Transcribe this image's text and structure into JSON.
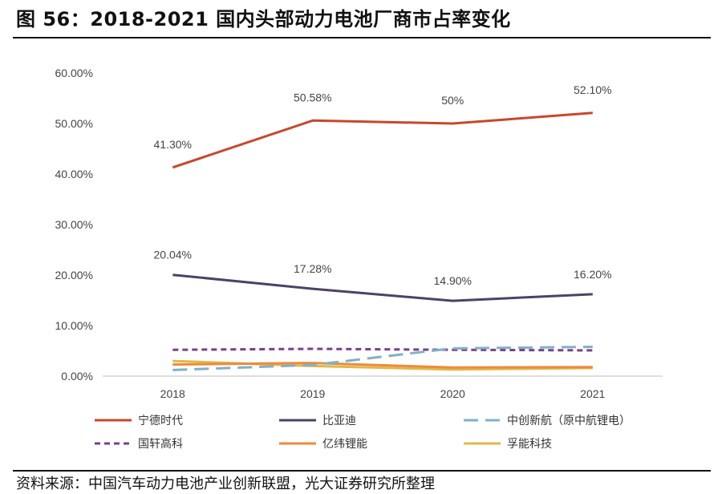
{
  "figure": {
    "title": "图 56：2018-2021 国内头部动力电池厂商市占率变化",
    "source": "资料来源：中国汽车动力电池产业创新联盟，光大证券研究所整理"
  },
  "chart_data": {
    "type": "line",
    "categories": [
      "2018",
      "2019",
      "2020",
      "2021"
    ],
    "ylim": [
      0,
      60
    ],
    "yticks": [
      "0.00%",
      "10.00%",
      "20.00%",
      "30.00%",
      "40.00%",
      "50.00%",
      "60.00%"
    ],
    "grid": false,
    "legend_position": "bottom",
    "series": [
      {
        "name": "宁德时代",
        "values": [
          41.3,
          50.58,
          50.0,
          52.1
        ],
        "labels": [
          "41.30%",
          "50.58%",
          "50%",
          "52.10%"
        ],
        "color": "#c9472b",
        "dash": "solid"
      },
      {
        "name": "比亚迪",
        "values": [
          20.04,
          17.28,
          14.9,
          16.2
        ],
        "labels": [
          "20.04%",
          "17.28%",
          "14.90%",
          "16.20%"
        ],
        "color": "#4b4366",
        "dash": "solid"
      },
      {
        "name": "中创新航（原中航锂电）",
        "values": [
          1.2,
          2.2,
          5.5,
          5.8
        ],
        "labels": [],
        "color": "#7fb1c9",
        "dash": "long"
      },
      {
        "name": "国轩高科",
        "values": [
          5.2,
          5.4,
          5.2,
          5.1
        ],
        "labels": [],
        "color": "#7b3f8c",
        "dash": "short"
      },
      {
        "name": "亿纬锂能",
        "values": [
          2.3,
          2.6,
          1.7,
          1.8
        ],
        "labels": [],
        "color": "#ef8a3a",
        "dash": "solid"
      },
      {
        "name": "孚能科技",
        "values": [
          3.0,
          2.0,
          1.3,
          1.6
        ],
        "labels": [],
        "color": "#e0b84a",
        "dash": "solid"
      }
    ]
  }
}
